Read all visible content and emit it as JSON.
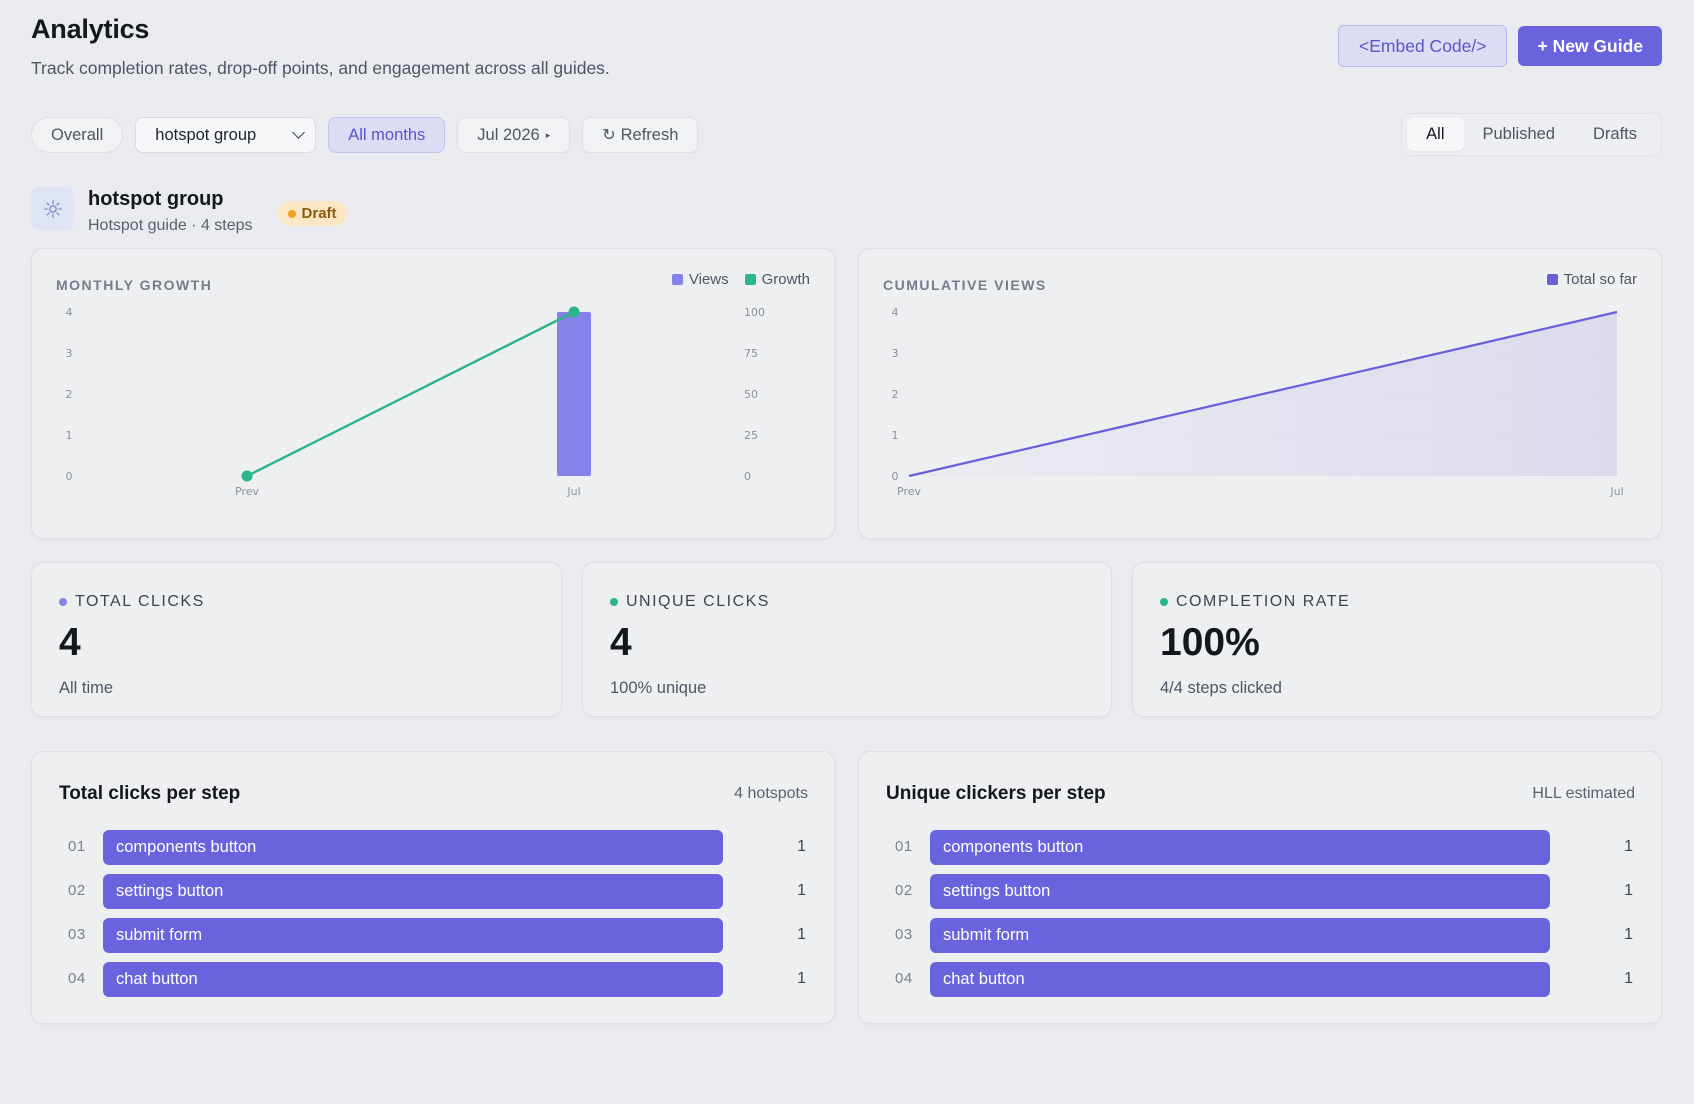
{
  "header": {
    "title": "Analytics",
    "subtitle": "Track completion rates, drop-off points, and engagement across all guides.",
    "embed_label": "<Embed Code/>",
    "new_guide_label": "+ New Guide"
  },
  "filters": {
    "overall": "Overall",
    "guide_select": "hotspot group",
    "all_months": "All months",
    "month": "Jul 2026",
    "refresh": "Refresh"
  },
  "status_tabs": [
    "All",
    "Published",
    "Drafts"
  ],
  "status_tab_active": "All",
  "guide": {
    "name": "hotspot group",
    "meta": "Hotspot guide · 4 steps",
    "badge": "Draft"
  },
  "monthly_growth": {
    "label": "MONTHLY GROWTH",
    "legend": [
      "Views",
      "Growth"
    ]
  },
  "cumulative_views": {
    "label": "CUMULATIVE VIEWS",
    "legend": [
      "Total so far"
    ]
  },
  "stats": [
    {
      "label": "TOTAL CLICKS",
      "value": "4",
      "sub": "All time"
    },
    {
      "label": "UNIQUE CLICKS",
      "value": "4",
      "sub": "100% unique"
    },
    {
      "label": "COMPLETION RATE",
      "value": "100%",
      "sub": "4/4 steps clicked"
    }
  ],
  "total_clicks_per_step": {
    "title": "Total clicks per step",
    "meta": "4 hotspots",
    "rows": [
      {
        "idx": "01",
        "label": "components button",
        "count": "1"
      },
      {
        "idx": "02",
        "label": "settings button",
        "count": "1"
      },
      {
        "idx": "03",
        "label": "submit form",
        "count": "1"
      },
      {
        "idx": "04",
        "label": "chat button",
        "count": "1"
      }
    ]
  },
  "unique_clickers_per_step": {
    "title": "Unique clickers per step",
    "meta": "HLL estimated",
    "rows": [
      {
        "idx": "01",
        "label": "components button",
        "count": "1"
      },
      {
        "idx": "02",
        "label": "settings button",
        "count": "1"
      },
      {
        "idx": "03",
        "label": "submit form",
        "count": "1"
      },
      {
        "idx": "04",
        "label": "chat button",
        "count": "1"
      }
    ]
  },
  "colors": {
    "accent": "#6a63de",
    "views_bar": "#8583e9",
    "growth_line": "#2bb58a",
    "cumulative_line": "#6a5fd9",
    "draft_dot": "#f1a21d",
    "dot_total": "#8583e9",
    "dot_unique": "#2bb58a",
    "dot_completion": "#2bb58a"
  },
  "chart_data": [
    {
      "type": "bar",
      "categories": [
        "Prev",
        "Jul"
      ],
      "series": [
        {
          "name": "Views",
          "type": "bar",
          "axis": "left",
          "values": [
            0,
            4
          ]
        },
        {
          "name": "Growth",
          "type": "line",
          "axis": "right",
          "values": [
            0,
            100
          ]
        }
      ],
      "yticks_left": [
        "0",
        "1",
        "2",
        "3",
        "4"
      ],
      "yticks_right": [
        "0",
        "25",
        "50",
        "75",
        "100"
      ],
      "ylim_left": [
        0,
        4
      ],
      "ylim_right": [
        0,
        100
      ],
      "legend": "top-right"
    },
    {
      "type": "area",
      "categories": [
        "Prev",
        "Jul"
      ],
      "series": [
        {
          "name": "Total so far",
          "values": [
            0,
            4
          ]
        }
      ],
      "yticks": [
        "0",
        "1",
        "2",
        "3",
        "4"
      ],
      "ylim": [
        0,
        4
      ],
      "legend": "top-right"
    }
  ]
}
